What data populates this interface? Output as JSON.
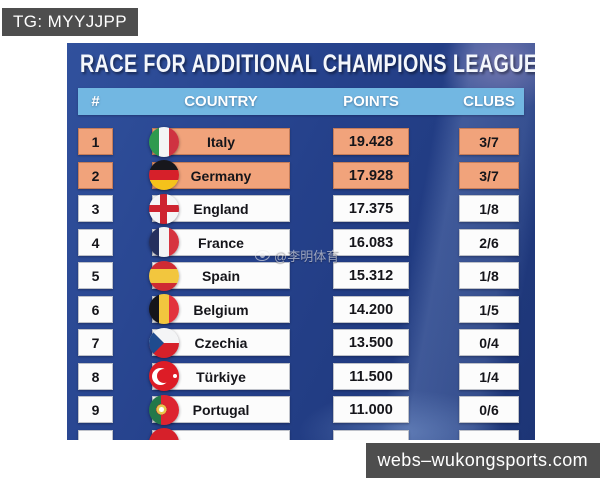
{
  "page": {
    "background": "#ffffff"
  },
  "top_badge": {
    "label": "TG: MYYJJPP"
  },
  "bottom_badge": {
    "label": "webs–wukongsports.com"
  },
  "watermark": {
    "handle": "@李明体育",
    "icon": "weibo-eye"
  },
  "table": {
    "title": "RACE FOR ADDITIONAL CHAMPIONS LEAGUE SPOTS",
    "columns": {
      "rank": "#",
      "country": "COUNTRY",
      "points": "POINTS",
      "clubs": "CLUBS"
    },
    "colors": {
      "poster_navy": "#25418b",
      "header_bg": "#72b7e2",
      "highlight_bg": "#f1a37b",
      "cell_bg": "#fcfcfc",
      "badge_bg": "#4e4e4e"
    },
    "rows": [
      {
        "rank": "1",
        "country": "Italy",
        "points": "19.428",
        "clubs": "3/7",
        "flag": "italy",
        "highlighted": true
      },
      {
        "rank": "2",
        "country": "Germany",
        "points": "17.928",
        "clubs": "3/7",
        "flag": "germany",
        "highlighted": true
      },
      {
        "rank": "3",
        "country": "England",
        "points": "17.375",
        "clubs": "1/8",
        "flag": "england",
        "highlighted": false
      },
      {
        "rank": "4",
        "country": "France",
        "points": "16.083",
        "clubs": "2/6",
        "flag": "france",
        "highlighted": false
      },
      {
        "rank": "5",
        "country": "Spain",
        "points": "15.312",
        "clubs": "1/8",
        "flag": "spain",
        "highlighted": false
      },
      {
        "rank": "6",
        "country": "Belgium",
        "points": "14.200",
        "clubs": "1/5",
        "flag": "belgium",
        "highlighted": false
      },
      {
        "rank": "7",
        "country": "Czechia",
        "points": "13.500",
        "clubs": "0/4",
        "flag": "czechia",
        "highlighted": false
      },
      {
        "rank": "8",
        "country": "Türkiye",
        "points": "11.500",
        "clubs": "1/4",
        "flag": "turkiye",
        "highlighted": false
      },
      {
        "rank": "9",
        "country": "Portugal",
        "points": "11.000",
        "clubs": "0/6",
        "flag": "portugal",
        "highlighted": false
      }
    ],
    "partial_row": {
      "flag": "red"
    }
  },
  "chart_data": {
    "type": "table",
    "title": "RACE FOR ADDITIONAL CHAMPIONS LEAGUE SPOTS",
    "columns": [
      "#",
      "COUNTRY",
      "POINTS",
      "CLUBS"
    ],
    "rows": [
      [
        1,
        "Italy",
        19.428,
        "3/7"
      ],
      [
        2,
        "Germany",
        17.928,
        "3/7"
      ],
      [
        3,
        "England",
        17.375,
        "1/8"
      ],
      [
        4,
        "France",
        16.083,
        "2/6"
      ],
      [
        5,
        "Spain",
        15.312,
        "1/8"
      ],
      [
        6,
        "Belgium",
        14.2,
        "1/5"
      ],
      [
        7,
        "Czechia",
        13.5,
        "0/4"
      ],
      [
        8,
        "Türkiye",
        11.5,
        "1/4"
      ],
      [
        9,
        "Portugal",
        11.0,
        "0/6"
      ]
    ],
    "highlighted_rows": [
      1,
      2
    ],
    "notes": "Rows 1-2 highlighted orange; tenth row cut off at bottom of image"
  }
}
